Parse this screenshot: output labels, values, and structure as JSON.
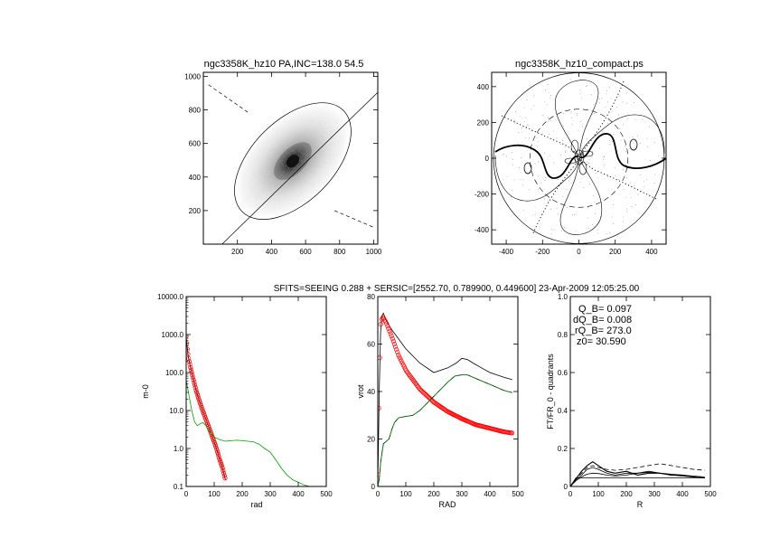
{
  "colors": {
    "foreground": "#000000",
    "model": "#ff0000",
    "green": "#00a000"
  },
  "header_text": "SFITS=SEEING 0.288 + SERSIC=[2552.70, 0.789900, 0.449600]  23-Apr-2009 12:05:25.00",
  "stats_labels": {
    "qb": "Q_B=  0.097",
    "dqb": "dQ_B=  0.008",
    "rqb": "rQ_B=  273.0",
    "z0": "z0= 30.590"
  },
  "chart_data": [
    {
      "id": "image-panel",
      "type": "image",
      "title": "ngc3358K_hz10 PA,INC=138.0 54.5",
      "xlim": [
        0,
        1024
      ],
      "ylim": [
        0,
        1024
      ],
      "xticks": [
        200,
        400,
        600,
        800,
        1000
      ],
      "yticks": [
        200,
        400,
        600,
        800,
        1000
      ],
      "galaxy_center": [
        525,
        495
      ],
      "ellipse": {
        "center": [
          525,
          495
        ],
        "semi_major": 420,
        "semi_minor": 240,
        "pa_deg": 45
      },
      "major_axis": [
        [
          110,
          0
        ],
        [
          1024,
          905
        ]
      ],
      "minor_axis_segments": [
        [
          [
            30,
            950
          ],
          [
            270,
            780
          ]
        ],
        [
          [
            770,
            200
          ],
          [
            1000,
            100
          ]
        ]
      ]
    },
    {
      "id": "force-map",
      "type": "contour",
      "title": "ngc3358K_hz10_compact.ps",
      "xlim": [
        -480,
        480
      ],
      "ylim": [
        -480,
        480
      ],
      "xticks": [
        -400,
        -200,
        0,
        200,
        400
      ],
      "yticks": [
        -400,
        -200,
        0,
        200,
        400
      ],
      "circle_radius": 470,
      "dashed_ring_radius": 270
    },
    {
      "id": "surface-density",
      "type": "line",
      "xlabel": "rad",
      "ylabel": "m-0",
      "xlim": [
        0,
        500
      ],
      "ylim": [
        0.1,
        10000
      ],
      "yscale": "log",
      "xticks": [
        0,
        100,
        200,
        300,
        400,
        500
      ],
      "yticks": [
        0.1,
        1.0,
        10.0,
        100.0,
        1000.0,
        10000.0
      ],
      "ytick_labels": [
        "0.1",
        "1.0",
        "10.0",
        "100.0",
        "1000.0",
        "10000.0"
      ],
      "series": [
        {
          "style": "black-line",
          "x": [
            0,
            3,
            8,
            15,
            25,
            35,
            45,
            55,
            70,
            85,
            100,
            110,
            120,
            130,
            140
          ],
          "y": [
            900,
            500,
            250,
            140,
            70,
            35,
            20,
            12,
            6,
            3,
            1.5,
            0.9,
            0.5,
            0.3,
            0.15
          ]
        },
        {
          "style": "red-markers",
          "x": [
            0,
            3,
            8,
            15,
            25,
            35,
            45,
            55,
            70,
            85,
            100,
            110,
            120,
            130,
            140
          ],
          "y": [
            900,
            500,
            250,
            140,
            70,
            35,
            20,
            12,
            6,
            3,
            1.5,
            0.9,
            0.5,
            0.3,
            0.15
          ]
        },
        {
          "style": "green-line",
          "x": [
            0,
            5,
            10,
            20,
            30,
            40,
            50,
            60,
            70,
            80,
            90,
            100,
            120,
            140,
            160,
            180,
            200,
            220,
            240,
            260,
            280,
            300,
            320,
            340,
            360,
            380,
            400,
            420,
            440
          ],
          "y": [
            60,
            40,
            25,
            10,
            5,
            4,
            4.5,
            4.8,
            4.0,
            3.0,
            2.4,
            2.0,
            1.7,
            1.55,
            1.6,
            1.65,
            1.6,
            1.55,
            1.5,
            1.3,
            1.0,
            0.8,
            0.5,
            0.3,
            0.2,
            0.15,
            0.13,
            0.11,
            0.1
          ]
        }
      ]
    },
    {
      "id": "rotation-curve",
      "type": "line",
      "xlabel": "RAD",
      "ylabel": "vrot",
      "xlim": [
        0,
        500
      ],
      "ylim": [
        0,
        80
      ],
      "xticks": [
        0,
        100,
        200,
        300,
        400,
        500
      ],
      "yticks": [
        0,
        20,
        40,
        60,
        80
      ],
      "series": [
        {
          "style": "black-line",
          "x": [
            0,
            5,
            10,
            15,
            20,
            30,
            50,
            75,
            100,
            150,
            200,
            250,
            280,
            300,
            320,
            340,
            370,
            400,
            450,
            480
          ],
          "y": [
            0,
            40,
            65,
            72,
            73,
            70,
            66,
            62,
            58,
            52,
            48,
            50,
            52,
            54,
            53.5,
            52,
            50,
            48,
            46,
            45
          ]
        },
        {
          "style": "red-markers",
          "x": [
            0,
            5,
            10,
            15,
            20,
            30,
            40,
            50,
            75,
            100,
            150,
            200,
            250,
            300,
            350,
            400,
            450,
            480
          ],
          "y": [
            5,
            45,
            68,
            71,
            71,
            69,
            66,
            63,
            55,
            49,
            41,
            35.5,
            31.5,
            28.5,
            26,
            24.5,
            23,
            22.5
          ]
        },
        {
          "style": "green-dashed",
          "x": [
            0,
            5,
            10,
            20,
            30,
            40,
            50,
            60,
            75,
            100,
            125,
            150,
            175,
            200,
            225,
            250,
            275,
            300,
            320,
            350,
            400,
            450,
            480
          ],
          "y": [
            0,
            3,
            10,
            18,
            19,
            20,
            24,
            27,
            29,
            29.5,
            30,
            32,
            35,
            38,
            41,
            44,
            46.5,
            47,
            47,
            45.5,
            43,
            40.5,
            39.5
          ]
        }
      ]
    },
    {
      "id": "ft-quadrants",
      "type": "line",
      "xlabel": "R",
      "ylabel": "FT/FR_0 - quadrants",
      "xlim": [
        0,
        500
      ],
      "ylim": [
        0,
        1.0
      ],
      "xticks": [
        0,
        100,
        200,
        300,
        400,
        500
      ],
      "yticks": [
        0.0,
        0.2,
        0.4,
        0.6,
        0.8,
        1.0
      ],
      "ytick_labels": [
        "0",
        "0.2",
        "0.4",
        "0.6",
        "0.8",
        "1.0"
      ],
      "series": [
        {
          "style": "black-line",
          "x": [
            0,
            20,
            40,
            60,
            80,
            100,
            130,
            160,
            200,
            240,
            280,
            320,
            360,
            400,
            440,
            480
          ],
          "y": [
            0,
            0.04,
            0.08,
            0.11,
            0.13,
            0.11,
            0.08,
            0.07,
            0.08,
            0.06,
            0.07,
            0.07,
            0.06,
            0.06,
            0.05,
            0.045
          ]
        },
        {
          "style": "black-line",
          "x": [
            0,
            20,
            40,
            60,
            80,
            100,
            130,
            160,
            200,
            240,
            280,
            320,
            360,
            400,
            440,
            480
          ],
          "y": [
            0,
            0.035,
            0.06,
            0.09,
            0.1,
            0.09,
            0.07,
            0.06,
            0.07,
            0.07,
            0.08,
            0.07,
            0.065,
            0.06,
            0.055,
            0.05
          ]
        },
        {
          "style": "black-line",
          "x": [
            0,
            20,
            40,
            60,
            80,
            100,
            130,
            160,
            200,
            240,
            280,
            320,
            360,
            400,
            440,
            480
          ],
          "y": [
            0,
            0.03,
            0.05,
            0.065,
            0.07,
            0.068,
            0.06,
            0.055,
            0.06,
            0.07,
            0.075,
            0.07,
            0.06,
            0.055,
            0.05,
            0.045
          ]
        },
        {
          "style": "black-dashed",
          "x": [
            0,
            20,
            40,
            60,
            80,
            100,
            130,
            160,
            200,
            240,
            280,
            320,
            360,
            400,
            440,
            480
          ],
          "y": [
            0,
            0.04,
            0.07,
            0.1,
            0.11,
            0.1,
            0.09,
            0.085,
            0.09,
            0.1,
            0.11,
            0.12,
            0.11,
            0.1,
            0.09,
            0.085
          ]
        },
        {
          "style": "black-line",
          "x": [
            0,
            20,
            40,
            60,
            80,
            120,
            160,
            200,
            280,
            360,
            480
          ],
          "y": [
            0,
            0.045,
            0.045,
            0.045,
            0.045,
            0.045,
            0.045,
            0.045,
            0.045,
            0.045,
            0.045
          ]
        }
      ]
    }
  ]
}
